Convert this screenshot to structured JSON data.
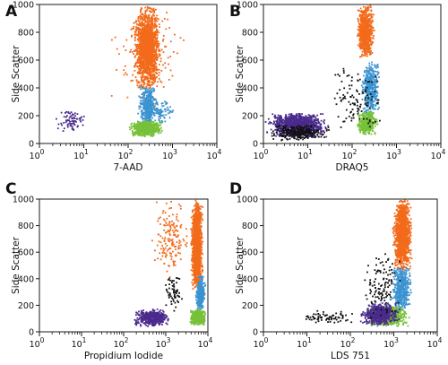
{
  "colors": {
    "orange": "#f26a1b",
    "blue": "#3b93d0",
    "green": "#77c13a",
    "purple": "#4a2a8c",
    "black": "#111111"
  },
  "chart_data": [
    {
      "type": "scatter",
      "panel_label": "A",
      "xlabel": "7-AAD",
      "ylabel": "Side Scatter",
      "x_scale": "log",
      "xlim": [
        1,
        10000
      ],
      "ylim": [
        0,
        1000
      ],
      "x_ticks": [
        {
          "value": 1,
          "base": "10",
          "exp": "0"
        },
        {
          "value": 10,
          "base": "10",
          "exp": "1"
        },
        {
          "value": 100,
          "base": "10",
          "exp": "2"
        },
        {
          "value": 1000,
          "base": "10",
          "exp": "3"
        },
        {
          "value": 10000,
          "base": "10",
          "exp": "4"
        }
      ],
      "y_ticks": [
        0,
        200,
        400,
        600,
        800,
        1000
      ],
      "series": [
        {
          "color": "orange",
          "clusters": [
            {
              "xmin": 120,
              "xmax": 600,
              "ymin": 380,
              "ymax": 1000,
              "count": 1500
            },
            {
              "xmin": 30,
              "xmax": 2500,
              "ymin": 250,
              "ymax": 1000,
              "count": 170
            }
          ]
        },
        {
          "color": "blue",
          "clusters": [
            {
              "xmin": 150,
              "xmax": 500,
              "ymin": 130,
              "ymax": 420,
              "count": 420
            },
            {
              "xmin": 250,
              "xmax": 1200,
              "ymin": 140,
              "ymax": 320,
              "count": 90
            }
          ]
        },
        {
          "color": "green",
          "clusters": [
            {
              "xmin": 100,
              "xmax": 650,
              "ymin": 50,
              "ymax": 165,
              "count": 700
            }
          ]
        },
        {
          "color": "purple",
          "clusters": [
            {
              "xmin": 2,
              "xmax": 15,
              "ymin": 70,
              "ymax": 260,
              "count": 75
            }
          ]
        }
      ]
    },
    {
      "type": "scatter",
      "panel_label": "B",
      "xlabel": "DRAQ5",
      "ylabel": "Side Scatter",
      "x_scale": "log",
      "xlim": [
        1,
        10000
      ],
      "ylim": [
        0,
        1000
      ],
      "x_ticks": [
        {
          "value": 1,
          "base": "10",
          "exp": "0"
        },
        {
          "value": 10,
          "base": "10",
          "exp": "1"
        },
        {
          "value": 100,
          "base": "10",
          "exp": "2"
        },
        {
          "value": 1000,
          "base": "10",
          "exp": "3"
        },
        {
          "value": 10000,
          "base": "10",
          "exp": "4"
        }
      ],
      "y_ticks": [
        0,
        200,
        400,
        600,
        800,
        1000
      ],
      "series": [
        {
          "color": "orange",
          "clusters": [
            {
              "xmin": 120,
              "xmax": 350,
              "ymin": 600,
              "ymax": 1000,
              "count": 650
            }
          ]
        },
        {
          "color": "blue",
          "clusters": [
            {
              "xmin": 150,
              "xmax": 450,
              "ymin": 200,
              "ymax": 600,
              "count": 450
            }
          ]
        },
        {
          "color": "green",
          "clusters": [
            {
              "xmin": 120,
              "xmax": 400,
              "ymin": 60,
              "ymax": 230,
              "count": 420
            }
          ]
        },
        {
          "color": "purple",
          "clusters": [
            {
              "xmin": 1,
              "xmax": 35,
              "ymin": 40,
              "ymax": 220,
              "count": 1100
            }
          ]
        },
        {
          "color": "black",
          "clusters": [
            {
              "xmin": 1,
              "xmax": 40,
              "ymin": 20,
              "ymax": 140,
              "count": 260
            },
            {
              "xmin": 20,
              "xmax": 600,
              "ymin": 80,
              "ymax": 560,
              "count": 110
            }
          ]
        }
      ]
    },
    {
      "type": "scatter",
      "panel_label": "C",
      "xlabel": "Propidium Iodide",
      "ylabel": "Side Scatter",
      "x_scale": "log",
      "xlim": [
        1,
        10000
      ],
      "ylim": [
        0,
        1000
      ],
      "x_ticks": [
        {
          "value": 1,
          "base": "10",
          "exp": "0"
        },
        {
          "value": 10,
          "base": "10",
          "exp": "1"
        },
        {
          "value": 100,
          "base": "10",
          "exp": "2"
        },
        {
          "value": 1000,
          "base": "10",
          "exp": "3"
        },
        {
          "value": 10000,
          "base": "10",
          "exp": "4"
        }
      ],
      "y_ticks": [
        0,
        200,
        400,
        600,
        800,
        1000
      ],
      "series": [
        {
          "color": "orange",
          "clusters": [
            {
              "xmin": 3800,
              "xmax": 8000,
              "ymin": 300,
              "ymax": 1000,
              "count": 1400
            },
            {
              "xmin": 400,
              "xmax": 4500,
              "ymin": 400,
              "ymax": 1000,
              "count": 160
            }
          ]
        },
        {
          "color": "blue",
          "clusters": [
            {
              "xmin": 5000,
              "xmax": 9000,
              "ymin": 150,
              "ymax": 420,
              "count": 320
            }
          ]
        },
        {
          "color": "green",
          "clusters": [
            {
              "xmin": 3500,
              "xmax": 9500,
              "ymin": 50,
              "ymax": 170,
              "count": 500
            }
          ]
        },
        {
          "color": "purple",
          "clusters": [
            {
              "xmin": 150,
              "xmax": 1500,
              "ymin": 40,
              "ymax": 170,
              "count": 400
            }
          ]
        },
        {
          "color": "black",
          "clusters": [
            {
              "xmin": 800,
              "xmax": 3000,
              "ymin": 150,
              "ymax": 450,
              "count": 60
            }
          ]
        }
      ]
    },
    {
      "type": "scatter",
      "panel_label": "D",
      "xlabel": "LDS 751",
      "ylabel": "Side Scatter",
      "x_scale": "log",
      "xlim": [
        1,
        10000
      ],
      "ylim": [
        0,
        1000
      ],
      "x_ticks": [
        {
          "value": 1,
          "base": "10",
          "exp": "0"
        },
        {
          "value": 10,
          "base": "10",
          "exp": "1"
        },
        {
          "value": 100,
          "base": "10",
          "exp": "2"
        },
        {
          "value": 1000,
          "base": "10",
          "exp": "3"
        },
        {
          "value": 10000,
          "base": "10",
          "exp": "4"
        }
      ],
      "y_ticks": [
        0,
        200,
        400,
        600,
        800,
        1000
      ],
      "series": [
        {
          "color": "orange",
          "clusters": [
            {
              "xmin": 900,
              "xmax": 2800,
              "ymin": 450,
              "ymax": 1000,
              "count": 1300
            }
          ]
        },
        {
          "color": "blue",
          "clusters": [
            {
              "xmin": 800,
              "xmax": 2800,
              "ymin": 150,
              "ymax": 500,
              "count": 450
            }
          ]
        },
        {
          "color": "green",
          "clusters": [
            {
              "xmin": 200,
              "xmax": 2500,
              "ymin": 40,
              "ymax": 200,
              "count": 700
            }
          ]
        },
        {
          "color": "purple",
          "clusters": [
            {
              "xmin": 150,
              "xmax": 1500,
              "ymin": 50,
              "ymax": 220,
              "count": 550
            }
          ]
        },
        {
          "color": "black",
          "clusters": [
            {
              "xmin": 5,
              "xmax": 200,
              "ymin": 60,
              "ymax": 160,
              "count": 70
            },
            {
              "xmin": 150,
              "xmax": 2000,
              "ymin": 100,
              "ymax": 600,
              "count": 120
            }
          ]
        }
      ]
    }
  ]
}
